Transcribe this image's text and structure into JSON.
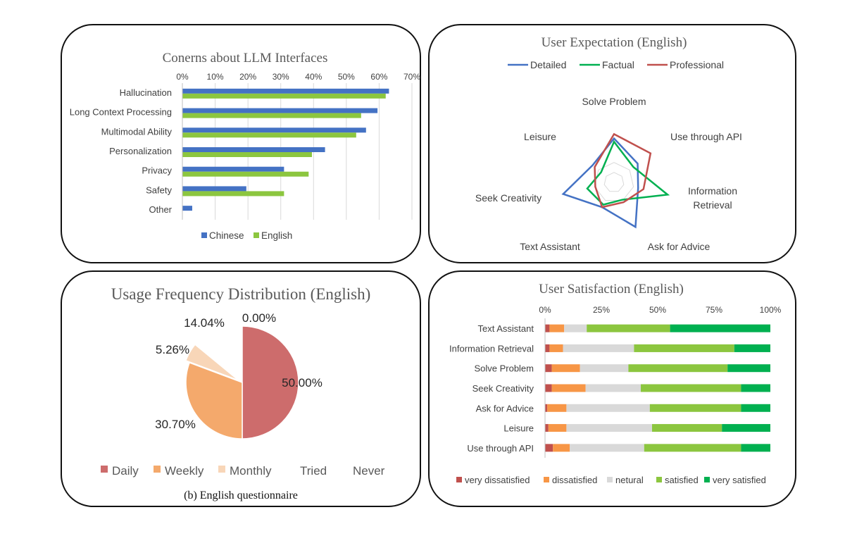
{
  "chart_data": [
    {
      "type": "bar",
      "orientation": "horizontal",
      "title": "Conerns about LLM Interfaces",
      "categories": [
        "Hallucination",
        "Long Context Processing",
        "Multimodal Ability",
        "Personalization",
        "Privacy",
        "Safety",
        "Other"
      ],
      "series": [
        {
          "name": "Chinese",
          "values": [
            0.63,
            0.595,
            0.56,
            0.435,
            0.31,
            0.195,
            0.03
          ]
        },
        {
          "name": "English",
          "values": [
            0.62,
            0.545,
            0.53,
            0.395,
            0.385,
            0.31,
            0.0
          ]
        }
      ],
      "xlim": [
        0,
        0.7
      ],
      "ticks": [
        "0%",
        "10%",
        "20%",
        "30%",
        "40%",
        "50%",
        "60%",
        "70%"
      ],
      "grid": true,
      "legend": "bottom",
      "colors": {
        "Chinese": "#4472c4",
        "English": "#8cc63f",
        "grid": "#d9d9d9"
      }
    },
    {
      "type": "radar",
      "title": "User Expectation (English)",
      "axes": [
        "Solve Problem",
        "Use through API",
        "Information Retrieval",
        "Ask for Advice",
        "Text Assistant",
        "Seek Creativity",
        "Leisure"
      ],
      "series": [
        {
          "name": "Detailed",
          "values": [
            0.8,
            0.55,
            0.45,
            0.9,
            0.5,
            0.95,
            0.5
          ]
        },
        {
          "name": "Factual",
          "values": [
            0.74,
            0.45,
            1.0,
            0.35,
            0.45,
            0.5,
            0.3
          ]
        },
        {
          "name": "Professional",
          "values": [
            0.88,
            0.85,
            0.55,
            0.4,
            0.5,
            0.35,
            0.45
          ]
        }
      ],
      "range": [
        0,
        1
      ],
      "legend": "top",
      "colors": {
        "Detailed": "#4472c4",
        "Factual": "#00b050",
        "Professional": "#c0504d",
        "grid": "#d9d9d9"
      }
    },
    {
      "type": "pie",
      "title": "Usage Frequency Distribution (English)",
      "caption": "(b)  English questionnaire",
      "slices": [
        {
          "name": "Daily",
          "value": 50.0,
          "label": "50.00%",
          "color": "#cd6c6c"
        },
        {
          "name": "Weekly",
          "value": 30.7,
          "label": "30.70%",
          "color": "#f4a96c"
        },
        {
          "name": "Monthly",
          "value": 5.26,
          "label": "5.26%",
          "color": "#f8d6b8"
        },
        {
          "name": "Tried",
          "value": 14.04,
          "label": "14.04%",
          "color": "#ffffff"
        },
        {
          "name": "Never",
          "value": 0.0,
          "label": "0.00%",
          "color": "#ffffff"
        }
      ],
      "legend": "bottom"
    },
    {
      "type": "bar",
      "orientation": "horizontal",
      "stacked": "percent",
      "title": "User Satisfaction (English)",
      "categories": [
        "Text Assistant",
        "Information Retrieval",
        "Solve Problem",
        "Seek Creativity",
        "Ask for Advice",
        "Leisure",
        "Use through API"
      ],
      "series": [
        {
          "name": "very dissatisfied",
          "values": [
            0.02,
            0.02,
            0.03,
            0.03,
            0.01,
            0.015,
            0.035
          ]
        },
        {
          "name": "dissatisfied",
          "values": [
            0.065,
            0.06,
            0.125,
            0.15,
            0.085,
            0.08,
            0.075
          ]
        },
        {
          "name": "netural",
          "values": [
            0.1,
            0.315,
            0.215,
            0.245,
            0.37,
            0.38,
            0.33
          ]
        },
        {
          "name": "satisfied",
          "values": [
            0.37,
            0.445,
            0.44,
            0.445,
            0.405,
            0.31,
            0.43
          ]
        },
        {
          "name": "very satisfied",
          "values": [
            0.445,
            0.16,
            0.19,
            0.13,
            0.13,
            0.215,
            0.13
          ]
        }
      ],
      "xlim": [
        0,
        1
      ],
      "ticks": [
        "0%",
        "25%",
        "50%",
        "75%",
        "100%"
      ],
      "legend": "bottom",
      "colors": {
        "very dissatisfied": "#c0504d",
        "dissatisfied": "#f79646",
        "netural": "#d9d9d9",
        "satisfied": "#8cc63f",
        "very satisfied": "#00b050"
      }
    }
  ]
}
